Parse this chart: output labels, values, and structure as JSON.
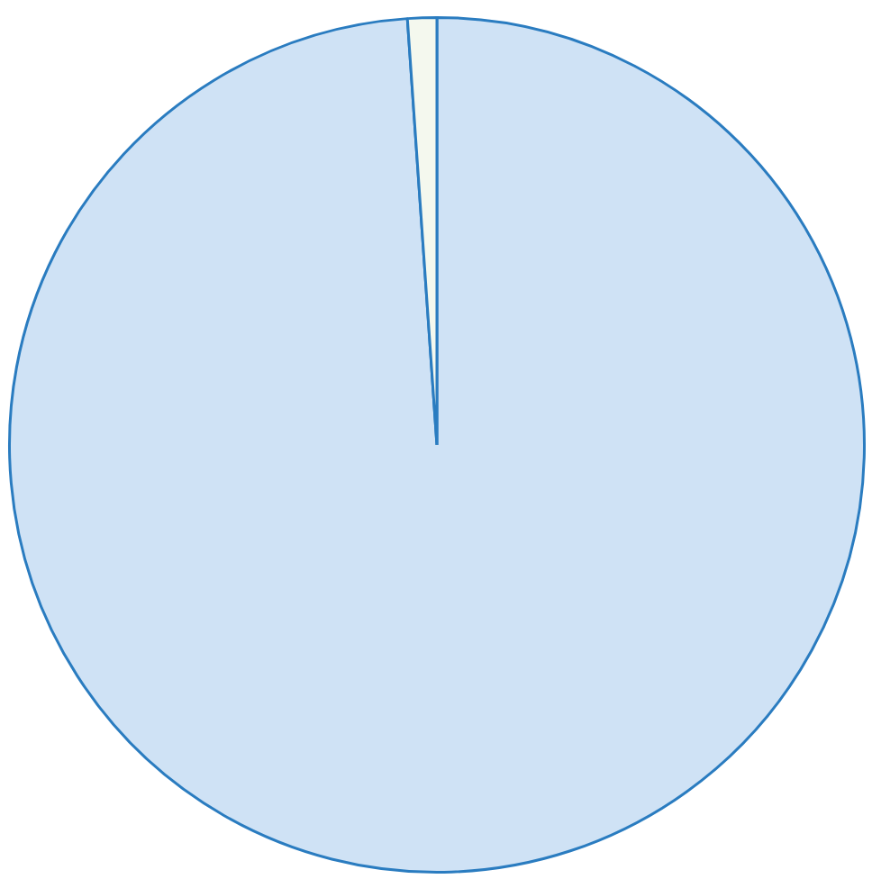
{
  "chart_data": {
    "type": "pie",
    "categories": [
      null,
      null
    ],
    "values": [
      98.9,
      1.1
    ],
    "colors": [
      "#cfe2f5",
      "#f4f8ee"
    ]
  }
}
